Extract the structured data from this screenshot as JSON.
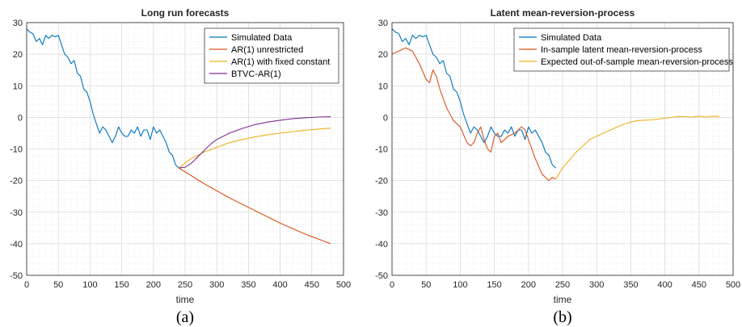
{
  "chart_data": [
    {
      "type": "line",
      "panel_label": "(a)",
      "title": "Long run forecasts",
      "xlabel": "time",
      "ylabel": "",
      "xlim": [
        0,
        500
      ],
      "ylim": [
        -50,
        30
      ],
      "xticks": [
        0,
        50,
        100,
        150,
        200,
        250,
        300,
        350,
        400,
        450,
        500
      ],
      "yticks": [
        -50,
        -40,
        -30,
        -20,
        -10,
        0,
        10,
        20,
        30
      ],
      "grid": true,
      "minor_grid": true,
      "legend_position": "top-right",
      "series": [
        {
          "name": "Simulated Data",
          "color": "#0072BD",
          "points": [
            [
              0,
              28
            ],
            [
              5,
              27
            ],
            [
              10,
              26.5
            ],
            [
              15,
              24
            ],
            [
              20,
              25
            ],
            [
              25,
              23
            ],
            [
              30,
              26
            ],
            [
              35,
              25
            ],
            [
              40,
              26
            ],
            [
              45,
              25.5
            ],
            [
              50,
              26
            ],
            [
              55,
              23
            ],
            [
              60,
              20
            ],
            [
              65,
              19
            ],
            [
              70,
              17
            ],
            [
              75,
              18
            ],
            [
              80,
              14
            ],
            [
              85,
              13
            ],
            [
              90,
              9
            ],
            [
              95,
              8
            ],
            [
              100,
              5
            ],
            [
              105,
              1
            ],
            [
              110,
              -2
            ],
            [
              115,
              -5
            ],
            [
              120,
              -3
            ],
            [
              125,
              -4
            ],
            [
              130,
              -6
            ],
            [
              135,
              -8
            ],
            [
              140,
              -6
            ],
            [
              145,
              -3
            ],
            [
              150,
              -5
            ],
            [
              155,
              -6
            ],
            [
              160,
              -6
            ],
            [
              165,
              -4
            ],
            [
              170,
              -5
            ],
            [
              175,
              -3
            ],
            [
              180,
              -6
            ],
            [
              185,
              -4
            ],
            [
              190,
              -4
            ],
            [
              195,
              -7
            ],
            [
              200,
              -3
            ],
            [
              205,
              -5
            ],
            [
              210,
              -4
            ],
            [
              215,
              -6
            ],
            [
              220,
              -8
            ],
            [
              225,
              -11
            ],
            [
              230,
              -12
            ],
            [
              235,
              -15
            ],
            [
              240,
              -16
            ]
          ]
        },
        {
          "name": "AR(1) unrestricted",
          "color": "#D95319",
          "points": [
            [
              240,
              -16
            ],
            [
              280,
              -21
            ],
            [
              320,
              -25.5
            ],
            [
              360,
              -29.5
            ],
            [
              400,
              -33.5
            ],
            [
              440,
              -37
            ],
            [
              480,
              -40
            ]
          ]
        },
        {
          "name": "AR(1) with fixed constant",
          "color": "#EDB120",
          "points": [
            [
              240,
              -16
            ],
            [
              260,
              -13
            ],
            [
              280,
              -11
            ],
            [
              300,
              -9.5
            ],
            [
              320,
              -8
            ],
            [
              340,
              -7
            ],
            [
              360,
              -6.2
            ],
            [
              380,
              -5.5
            ],
            [
              400,
              -5
            ],
            [
              420,
              -4.5
            ],
            [
              440,
              -4.1
            ],
            [
              460,
              -3.7
            ],
            [
              480,
              -3.4
            ]
          ]
        },
        {
          "name": "BTVC-AR(1)",
          "color": "#7E2F8E",
          "points": [
            [
              240,
              -16
            ],
            [
              250,
              -15.8
            ],
            [
              260,
              -14.5
            ],
            [
              270,
              -12.5
            ],
            [
              280,
              -10.5
            ],
            [
              290,
              -8.5
            ],
            [
              300,
              -7
            ],
            [
              320,
              -5
            ],
            [
              340,
              -3.5
            ],
            [
              360,
              -2.3
            ],
            [
              380,
              -1.5
            ],
            [
              400,
              -0.9
            ],
            [
              420,
              -0.4
            ],
            [
              440,
              -0.1
            ],
            [
              460,
              0.1
            ],
            [
              480,
              0.2
            ]
          ]
        }
      ]
    },
    {
      "type": "line",
      "panel_label": "(b)",
      "title": "Latent mean-reversion-process",
      "xlabel": "time",
      "ylabel": "",
      "xlim": [
        0,
        500
      ],
      "ylim": [
        -50,
        30
      ],
      "xticks": [
        0,
        50,
        100,
        150,
        200,
        250,
        300,
        350,
        400,
        450,
        500
      ],
      "yticks": [
        -50,
        -40,
        -30,
        -20,
        -10,
        0,
        10,
        20,
        30
      ],
      "grid": true,
      "minor_grid": true,
      "legend_position": "top-right",
      "series": [
        {
          "name": "Simulated Data",
          "color": "#0072BD",
          "points": [
            [
              0,
              28
            ],
            [
              5,
              27
            ],
            [
              10,
              26.5
            ],
            [
              15,
              24
            ],
            [
              20,
              25
            ],
            [
              25,
              23
            ],
            [
              30,
              26
            ],
            [
              35,
              25
            ],
            [
              40,
              26
            ],
            [
              45,
              25.5
            ],
            [
              50,
              26
            ],
            [
              55,
              23
            ],
            [
              60,
              20
            ],
            [
              65,
              19
            ],
            [
              70,
              17
            ],
            [
              75,
              18
            ],
            [
              80,
              14
            ],
            [
              85,
              13
            ],
            [
              90,
              9
            ],
            [
              95,
              8
            ],
            [
              100,
              5
            ],
            [
              105,
              1
            ],
            [
              110,
              -2
            ],
            [
              115,
              -5
            ],
            [
              120,
              -3
            ],
            [
              125,
              -4
            ],
            [
              130,
              -6
            ],
            [
              135,
              -8
            ],
            [
              140,
              -6
            ],
            [
              145,
              -3
            ],
            [
              150,
              -5
            ],
            [
              155,
              -6
            ],
            [
              160,
              -6
            ],
            [
              165,
              -4
            ],
            [
              170,
              -5
            ],
            [
              175,
              -3
            ],
            [
              180,
              -6
            ],
            [
              185,
              -4
            ],
            [
              190,
              -4
            ],
            [
              195,
              -7
            ],
            [
              200,
              -3
            ],
            [
              205,
              -5
            ],
            [
              210,
              -4
            ],
            [
              215,
              -6
            ],
            [
              220,
              -8
            ],
            [
              225,
              -11
            ],
            [
              230,
              -12
            ],
            [
              235,
              -15
            ],
            [
              240,
              -16
            ]
          ]
        },
        {
          "name": "In-sample latent mean-reversion-process",
          "color": "#D95319",
          "points": [
            [
              0,
              20
            ],
            [
              10,
              21
            ],
            [
              20,
              22
            ],
            [
              30,
              21
            ],
            [
              40,
              17
            ],
            [
              50,
              12
            ],
            [
              55,
              11
            ],
            [
              60,
              15
            ],
            [
              65,
              13
            ],
            [
              70,
              9
            ],
            [
              80,
              3
            ],
            [
              90,
              -1
            ],
            [
              95,
              -2
            ],
            [
              100,
              -3
            ],
            [
              110,
              -8
            ],
            [
              115,
              -9
            ],
            [
              120,
              -8
            ],
            [
              125,
              -5
            ],
            [
              130,
              -3
            ],
            [
              135,
              -7
            ],
            [
              140,
              -10
            ],
            [
              145,
              -11
            ],
            [
              150,
              -6
            ],
            [
              155,
              -5
            ],
            [
              160,
              -8
            ],
            [
              165,
              -7
            ],
            [
              170,
              -6
            ],
            [
              180,
              -5
            ],
            [
              190,
              -3
            ],
            [
              195,
              -4
            ],
            [
              200,
              -7
            ],
            [
              210,
              -13
            ],
            [
              220,
              -18
            ],
            [
              230,
              -20
            ],
            [
              235,
              -19
            ],
            [
              240,
              -19.5
            ]
          ]
        },
        {
          "name": "Expected out-of-sample mean-reversion-process",
          "color": "#EDB120",
          "points": [
            [
              240,
              -19.5
            ],
            [
              250,
              -16
            ],
            [
              260,
              -13.5
            ],
            [
              270,
              -11
            ],
            [
              280,
              -9
            ],
            [
              290,
              -7
            ],
            [
              300,
              -6
            ],
            [
              310,
              -5
            ],
            [
              320,
              -4
            ],
            [
              330,
              -3
            ],
            [
              340,
              -2.2
            ],
            [
              350,
              -1.5
            ],
            [
              360,
              -1
            ],
            [
              380,
              -0.8
            ],
            [
              400,
              -0.3
            ],
            [
              420,
              0.3
            ],
            [
              440,
              0.1
            ],
            [
              450,
              0.4
            ],
            [
              460,
              0.1
            ],
            [
              470,
              0.4
            ],
            [
              480,
              0.3
            ]
          ]
        }
      ]
    }
  ]
}
